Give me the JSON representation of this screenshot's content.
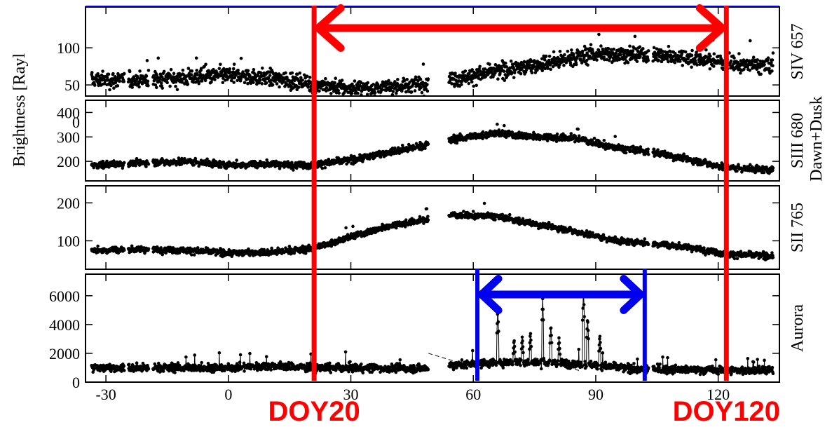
{
  "chart_data": {
    "type": "scatter",
    "x": {
      "lim": [
        -35,
        135
      ],
      "ticks": [
        -30,
        0,
        30,
        60,
        90,
        120
      ],
      "tick_labels": [
        "-30",
        "0",
        "30",
        "60",
        "90",
        "120"
      ]
    },
    "ylabel": "Brightness [Rayl",
    "right_group_label": "Dawn+Dusk",
    "data_gap": [
      49,
      54
    ],
    "panels": [
      {
        "id": "siv657",
        "label": "SIV 657",
        "ylim": [
          35,
          155
        ],
        "yticks": [
          0,
          50,
          100
        ],
        "ytick_labels": [
          "0",
          "50",
          "100"
        ],
        "noise": 9,
        "spike_prob": 0.004,
        "spike_amp": 25,
        "trend": [
          [
            -33,
            57
          ],
          [
            -20,
            57
          ],
          [
            0,
            63
          ],
          [
            10,
            60
          ],
          [
            20,
            52
          ],
          [
            30,
            45
          ],
          [
            40,
            46
          ],
          [
            48,
            52
          ],
          [
            55,
            58
          ],
          [
            70,
            72
          ],
          [
            90,
            92
          ],
          [
            105,
            90
          ],
          [
            115,
            85
          ],
          [
            125,
            78
          ],
          [
            133,
            75
          ]
        ]
      },
      {
        "id": "siii680",
        "label": "SIII 680",
        "ylim": [
          120,
          450
        ],
        "yticks": [
          200,
          300,
          400
        ],
        "ytick_labels": [
          "200",
          "300",
          "400"
        ],
        "noise": 12,
        "spike_prob": 0.003,
        "spike_amp": 35,
        "trend": [
          [
            -33,
            185
          ],
          [
            -20,
            195
          ],
          [
            -10,
            200
          ],
          [
            0,
            185
          ],
          [
            10,
            190
          ],
          [
            20,
            185
          ],
          [
            30,
            205
          ],
          [
            40,
            240
          ],
          [
            48,
            265
          ],
          [
            55,
            290
          ],
          [
            65,
            315
          ],
          [
            75,
            300
          ],
          [
            85,
            295
          ],
          [
            95,
            255
          ],
          [
            105,
            235
          ],
          [
            115,
            200
          ],
          [
            122,
            175
          ],
          [
            133,
            165
          ]
        ]
      },
      {
        "id": "sii765",
        "label": "SII 765",
        "ylim": [
          25,
          245
        ],
        "yticks": [
          100,
          200
        ],
        "ytick_labels": [
          "100",
          "200"
        ],
        "noise": 7,
        "spike_prob": 0.003,
        "spike_amp": 25,
        "trend": [
          [
            -33,
            75
          ],
          [
            -20,
            78
          ],
          [
            -10,
            75
          ],
          [
            0,
            68
          ],
          [
            10,
            70
          ],
          [
            20,
            78
          ],
          [
            30,
            110
          ],
          [
            40,
            140
          ],
          [
            48,
            155
          ],
          [
            55,
            168
          ],
          [
            65,
            165
          ],
          [
            75,
            145
          ],
          [
            85,
            125
          ],
          [
            95,
            100
          ],
          [
            105,
            92
          ],
          [
            115,
            80
          ],
          [
            122,
            65
          ],
          [
            133,
            60
          ]
        ]
      },
      {
        "id": "aurora",
        "label": "Aurora",
        "ylim": [
          0,
          7500
        ],
        "yticks": [
          0,
          2000,
          4000,
          6000
        ],
        "ytick_labels": [
          "0",
          "2000",
          "4000",
          "6000"
        ],
        "noise": 230,
        "spike_prob": 0.01,
        "spike_amp": 700,
        "dashed_line": true,
        "trend": [
          [
            -33,
            1000
          ],
          [
            0,
            1000
          ],
          [
            10,
            1150
          ],
          [
            20,
            1000
          ],
          [
            48,
            950
          ],
          [
            55,
            1200
          ],
          [
            70,
            1400
          ],
          [
            85,
            1300
          ],
          [
            100,
            900
          ],
          [
            133,
            800
          ]
        ],
        "peaks": [
          [
            66,
            5100
          ],
          [
            70,
            3000
          ],
          [
            72,
            3200
          ],
          [
            74,
            3500
          ],
          [
            77,
            5800
          ],
          [
            79,
            4000
          ],
          [
            81,
            3100
          ],
          [
            87,
            6500
          ],
          [
            88,
            4500
          ],
          [
            91,
            3300
          ]
        ]
      }
    ],
    "annotations": {
      "red_lines": [
        21,
        122
      ],
      "red_arrow": {
        "from": 21,
        "to": 122
      },
      "blue_lines": [
        61,
        102
      ],
      "blue_arrow": {
        "from": 61,
        "to": 102
      },
      "doy_labels": [
        {
          "text": "DOY20",
          "x": 21
        },
        {
          "text": "DOY120",
          "x": 122
        }
      ]
    },
    "colors": {
      "points": "#000000",
      "red": "#ff0000",
      "blue": "#0000ee",
      "axis": "#000000",
      "top_line": "#1a1aff"
    }
  }
}
